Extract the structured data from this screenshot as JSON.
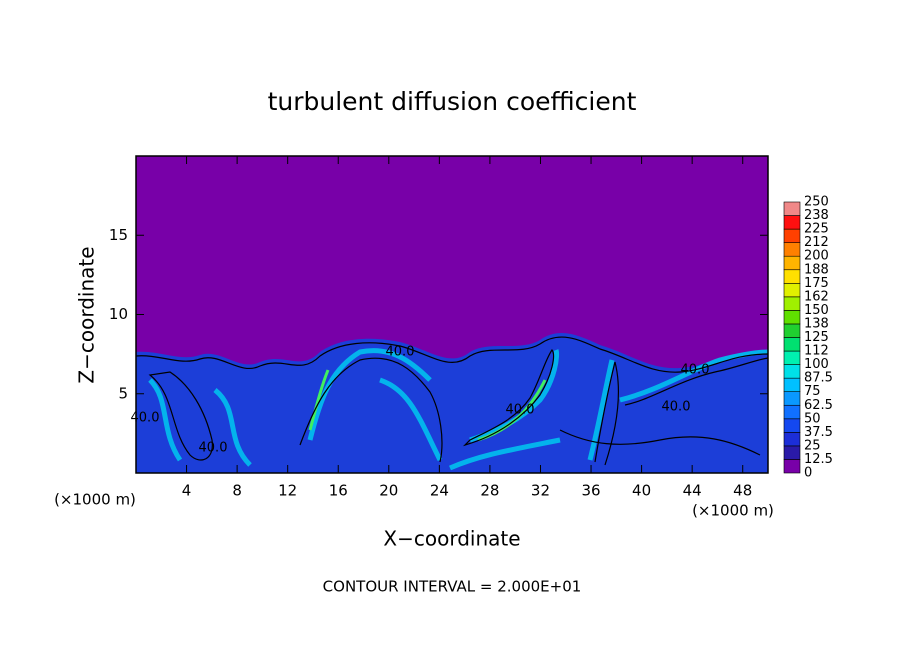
{
  "chart_data": {
    "type": "heatmap",
    "title": "turbulent diffusion coefficient",
    "x_label": "X−coordinate",
    "y_label": "Z−coordinate",
    "x_unit_label": "(×1000 m)",
    "annotation": "CONTOUR INTERVAL = 2.000E+01",
    "contour_label": "40.0",
    "xlim": [
      0,
      50
    ],
    "ylim": [
      0,
      20
    ],
    "xticks": [
      4,
      8,
      12,
      16,
      20,
      24,
      28,
      32,
      36,
      40,
      44,
      48
    ],
    "yticks": [
      5,
      10,
      15
    ],
    "colorbar": {
      "levels": [
        0,
        12.5,
        25,
        37.5,
        50,
        62.5,
        75,
        87.5,
        100,
        112,
        125,
        138,
        150,
        162,
        175,
        188,
        200,
        212,
        225,
        238,
        250
      ],
      "colors": [
        "#7800a8",
        "#2a1aa8",
        "#1c2ed8",
        "#1448f0",
        "#1070ff",
        "#0a98ff",
        "#00c0ff",
        "#00e0e8",
        "#00f0b0",
        "#00e070",
        "#20d030",
        "#60e000",
        "#a0f000",
        "#e0f000",
        "#ffe000",
        "#ffb400",
        "#ff8000",
        "#ff4000",
        "#ff1010",
        "#f08888"
      ]
    }
  }
}
